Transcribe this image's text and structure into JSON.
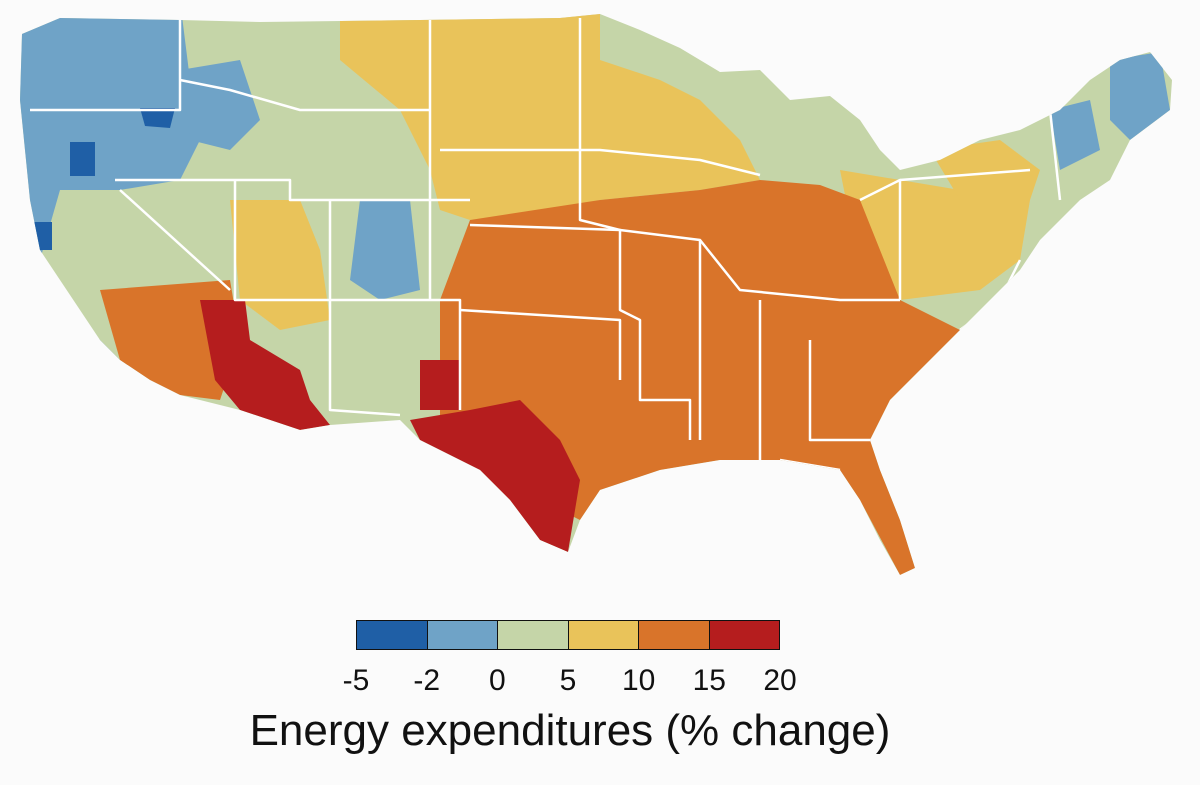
{
  "map": {
    "region": "contiguous-united-states",
    "colors": {
      "state_border": "#ffffff",
      "county_line": "#d9d9d9"
    },
    "zones": [
      {
        "zone": "west-coast-pacific-northwest",
        "class": "-2 to 0"
      },
      {
        "zone": "great-plains-north",
        "class": "5 to 10"
      },
      {
        "zone": "upper-midwest-northeast",
        "class": "0 to 5"
      },
      {
        "zone": "midwest-south",
        "class": "10 to 15"
      },
      {
        "zone": "southwest-texas",
        "class": "15 to 20"
      }
    ]
  },
  "legend": {
    "title": "Energy expenditures (% change)",
    "ticks": [
      "-5",
      "-2",
      "0",
      "5",
      "10",
      "15",
      "20"
    ],
    "bins": [
      {
        "range": "-5 to -2",
        "color": "#1f5fa6"
      },
      {
        "range": "-2 to 0",
        "color": "#6fa3c7"
      },
      {
        "range": "0 to 5",
        "color": "#c5d5a8"
      },
      {
        "range": "5 to 10",
        "color": "#e9c35a"
      },
      {
        "range": "10 to 15",
        "color": "#d9742a"
      },
      {
        "range": "15 to 20",
        "color": "#b51d1e"
      }
    ]
  }
}
